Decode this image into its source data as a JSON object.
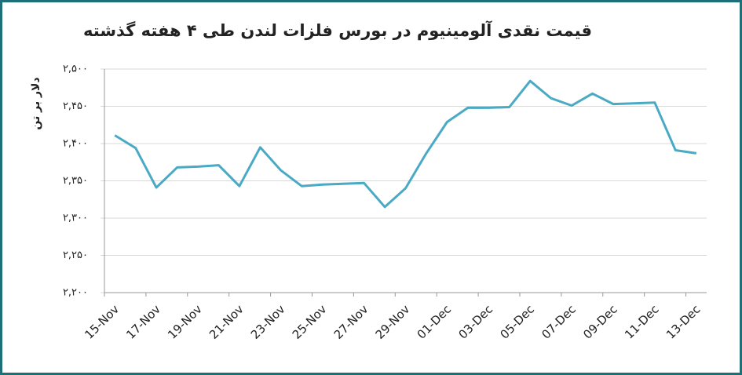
{
  "chart_data": {
    "type": "line",
    "title": "قیمت نقدی آلومینیوم در بورس فلزات لندن طی ۴ هفته گذشته",
    "y_label": "دلار بر تن",
    "categories": [
      "15-Nov",
      null,
      "17-Nov",
      null,
      "19-Nov",
      null,
      "21-Nov",
      null,
      "23-Nov",
      null,
      "25-Nov",
      null,
      "27-Nov",
      null,
      "29-Nov",
      null,
      "01-Dec",
      null,
      "03-Dec",
      null,
      "05-Dec",
      null,
      "07-Dec",
      null,
      "09-Dec",
      null,
      "11-Dec",
      null,
      "13-Dec"
    ],
    "series": [
      {
        "name": "قیمت",
        "color": "#4aaac4",
        "values": [
          2411,
          2394,
          2341,
          2368,
          2369,
          2371,
          2343,
          2395,
          2364,
          2343,
          2345,
          2346,
          2347,
          2315,
          2340,
          2387,
          2429,
          2448,
          2448,
          2449,
          2484,
          2461,
          2451,
          2467,
          2453,
          2454,
          2455,
          2391,
          2387
        ]
      }
    ],
    "ylim": [
      2200,
      2500
    ],
    "yticks": [
      {
        "value": 2200,
        "label": "۲,۲۰۰"
      },
      {
        "value": 2250,
        "label": "۲,۲۵۰"
      },
      {
        "value": 2300,
        "label": "۲,۳۰۰"
      },
      {
        "value": 2350,
        "label": "۲,۳۵۰"
      },
      {
        "value": 2400,
        "label": "۲,۴۰۰"
      },
      {
        "value": 2450,
        "label": "۲,۴۵۰"
      },
      {
        "value": 2500,
        "label": "۲,۵۰۰"
      }
    ],
    "grid": true
  }
}
